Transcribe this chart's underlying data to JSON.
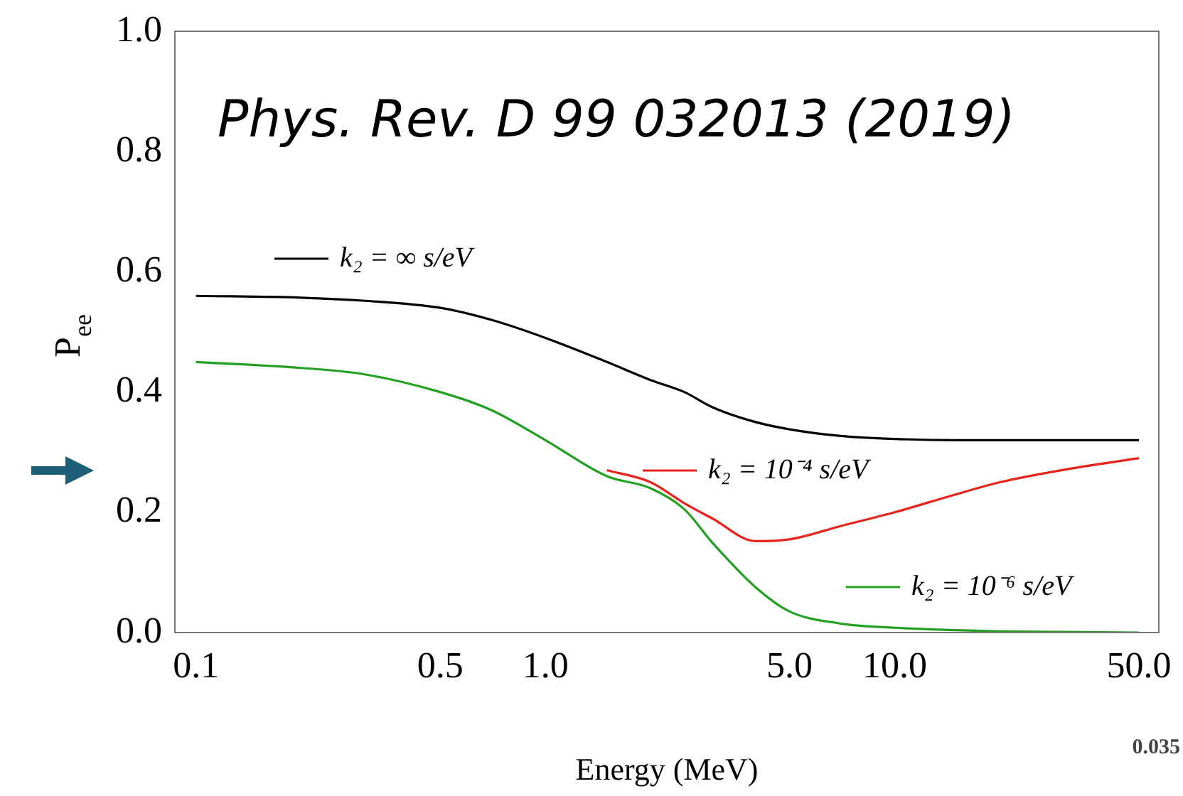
{
  "chart_data": {
    "type": "line",
    "ylabel": "P$_{ee}$",
    "xlabel": "Energy (MeV)",
    "log": "x",
    "legend": "center",
    "annotations": [
      "Phys. Rev. D 99 032013 (2019)",
      "0.035"
    ],
    "xlim": [
      0.087,
      57
    ],
    "xticks": [
      0.1,
      0.5,
      {
        "value": 1,
        "label": "1.0"
      },
      {
        "value": 5,
        "label": "5.0"
      },
      {
        "value": 10,
        "label": "10.0"
      },
      {
        "value": 50,
        "label": "50.0"
      }
    ],
    "ylim": [
      0,
      1
    ],
    "yticks": [
      {
        "value": 0,
        "label": "0.0"
      },
      {
        "value": 0.2,
        "label": "0.2"
      },
      {
        "value": 0.4,
        "label": "0.4"
      },
      {
        "value": 0.6,
        "label": "0.6"
      },
      {
        "value": 0.8,
        "label": "0.8"
      },
      {
        "value": 1,
        "label": "1.0"
      }
    ],
    "x": [
      0.1,
      0.2,
      0.3,
      0.5,
      0.7,
      1,
      1.5,
      2,
      2.5,
      3,
      4,
      5,
      7,
      10,
      15,
      20,
      30,
      50
    ],
    "series": [
      {
        "name": "k₂ = ∞ s/eV",
        "color": "#000000",
        "values": [
          0.56,
          0.557,
          0.552,
          0.54,
          0.52,
          0.49,
          0.45,
          0.42,
          0.4,
          0.375,
          0.35,
          0.338,
          0.327,
          0.322,
          0.32,
          0.32,
          0.32,
          0.32
        ]
      },
      {
        "name": "k₂ = 10⁻⁴ s/eV",
        "color": "#e8231c",
        "values": [
          null,
          null,
          null,
          null,
          null,
          null,
          0.27,
          0.25,
          0.215,
          0.19,
          0.152,
          0.155,
          0.177,
          0.2,
          0.23,
          0.25,
          0.27,
          0.29
        ]
      },
      {
        "name": "k₂ = 10⁻⁶ s/eV",
        "color": "#22a022",
        "values": [
          0.45,
          0.44,
          0.43,
          0.4,
          0.37,
          0.32,
          0.26,
          0.24,
          0.205,
          0.15,
          0.075,
          0.035,
          0.015,
          0.008,
          0.004,
          0.002,
          0.001,
          0
        ]
      }
    ]
  }
}
